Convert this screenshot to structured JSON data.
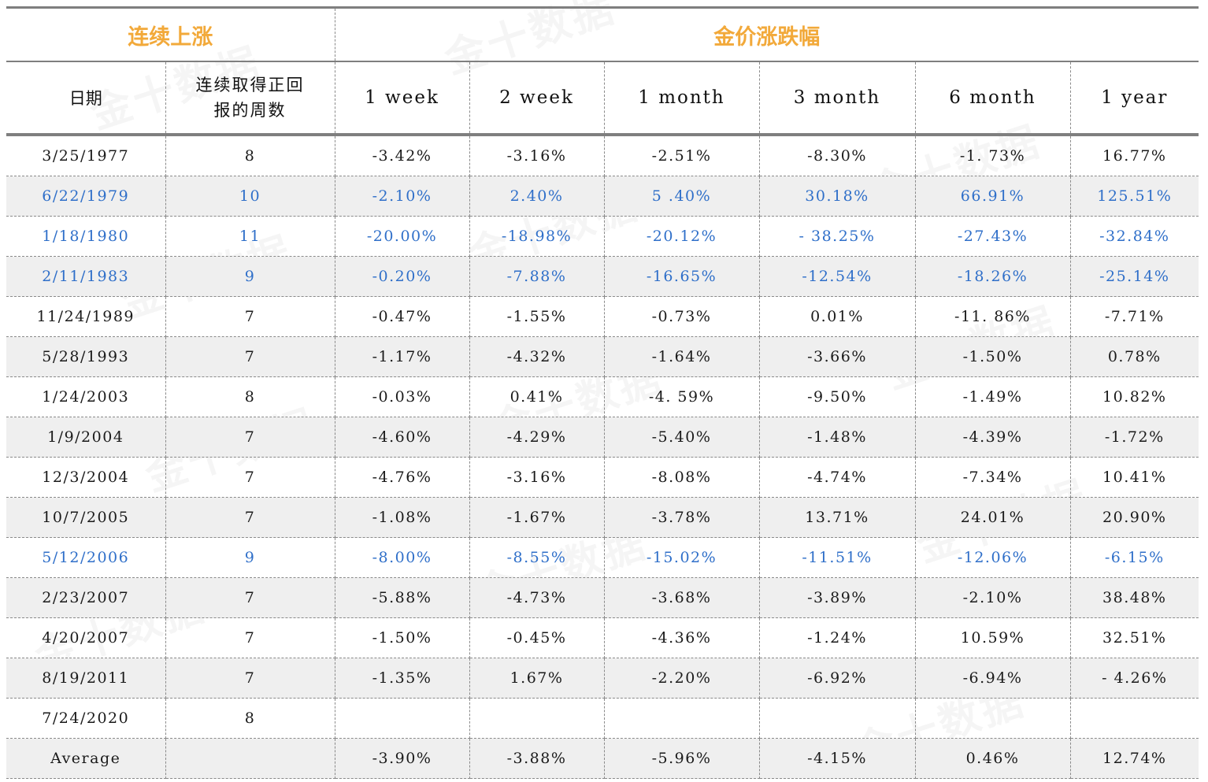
{
  "watermark": "金十数据",
  "group_headers": {
    "left": "连续上涨",
    "right": "金价涨跌幅"
  },
  "headers": {
    "date": "日期",
    "weeks_line1": "连续取得正回",
    "weeks_line2": "报的周数",
    "periods": [
      "1 week",
      "2 week",
      "1 month",
      "3 month",
      "6 month",
      "1 year"
    ]
  },
  "rows": [
    {
      "date": "3/25/1977",
      "weeks": "8",
      "values": [
        "-3.42%",
        "-3.16%",
        "-2.51%",
        "-8.30%",
        "-1. 73%",
        "16.77%"
      ],
      "highlight": false,
      "shaded": false
    },
    {
      "date": "6/22/1979",
      "weeks": "10",
      "values": [
        "-2.10%",
        "2.40%",
        "5 .40%",
        "30.18%",
        "66.91%",
        "125.51%"
      ],
      "highlight": true,
      "shaded": true
    },
    {
      "date": "1/18/1980",
      "weeks": "11",
      "values": [
        "-20.00%",
        "-18.98%",
        "-20.12%",
        "- 38.25%",
        "-27.43%",
        "-32.84%"
      ],
      "highlight": true,
      "shaded": false
    },
    {
      "date": "2/11/1983",
      "weeks": "9",
      "values": [
        "-0.20%",
        "-7.88%",
        "-16.65%",
        "-12.54%",
        "-18.26%",
        "-25.14%"
      ],
      "highlight": true,
      "shaded": true
    },
    {
      "date": "11/24/1989",
      "weeks": "7",
      "values": [
        "-0.47%",
        "-1.55%",
        "-0.73%",
        "0.01%",
        "-11. 86%",
        "-7.71%"
      ],
      "highlight": false,
      "shaded": false
    },
    {
      "date": "5/28/1993",
      "weeks": "7",
      "values": [
        "-1.17%",
        "-4.32%",
        "-1.64%",
        "-3.66%",
        "-1.50%",
        "0.78%"
      ],
      "highlight": false,
      "shaded": true
    },
    {
      "date": "1/24/2003",
      "weeks": "8",
      "values": [
        "-0.03%",
        "0.41%",
        "-4. 59%",
        "-9.50%",
        "-1.49%",
        "10.82%"
      ],
      "highlight": false,
      "shaded": false
    },
    {
      "date": "1/9/2004",
      "weeks": "7",
      "values": [
        "-4.60%",
        "-4.29%",
        "-5.40%",
        "-1.48%",
        "-4.39%",
        "-1.72%"
      ],
      "highlight": false,
      "shaded": true
    },
    {
      "date": "12/3/2004",
      "weeks": "7",
      "values": [
        "-4.76%",
        "-3.16%",
        "-8.08%",
        "-4.74%",
        "-7.34%",
        "10.41%"
      ],
      "highlight": false,
      "shaded": false
    },
    {
      "date": "10/7/2005",
      "weeks": "7",
      "values": [
        "-1.08%",
        "-1.67%",
        "-3.78%",
        "13.71%",
        "24.01%",
        "20.90%"
      ],
      "highlight": false,
      "shaded": true
    },
    {
      "date": "5/12/2006",
      "weeks": "9",
      "values": [
        "-8.00%",
        "-8.55%",
        "-15.02%",
        "-11.51%",
        "-12.06%",
        "-6.15%"
      ],
      "highlight": true,
      "shaded": false
    },
    {
      "date": "2/23/2007",
      "weeks": "7",
      "values": [
        "-5.88%",
        "-4.73%",
        "-3.68%",
        "-3.89%",
        "-2.10%",
        "38.48%"
      ],
      "highlight": false,
      "shaded": true
    },
    {
      "date": "4/20/2007",
      "weeks": "7",
      "values": [
        "-1.50%",
        "-0.45%",
        "-4.36%",
        "-1.24%",
        "10.59%",
        "32.51%"
      ],
      "highlight": false,
      "shaded": false
    },
    {
      "date": "8/19/2011",
      "weeks": "7",
      "values": [
        "-1.35%",
        "1.67%",
        "-2.20%",
        "-6.92%",
        "-6.94%",
        "- 4.26%"
      ],
      "highlight": false,
      "shaded": true
    },
    {
      "date": "7/24/2020",
      "weeks": "8",
      "values": [
        "",
        "",
        "",
        "",
        "",
        ""
      ],
      "highlight": false,
      "shaded": false
    },
    {
      "date": "Average",
      "weeks": "",
      "values": [
        "-3.90%",
        "-3.88%",
        "-5.96%",
        "-4.15%",
        "0.46%",
        "12.74%"
      ],
      "highlight": false,
      "shaded": true
    }
  ],
  "colors": {
    "group_header": "#f2a93a",
    "highlight": "#2f6fc9",
    "shade": "#efefef",
    "grid": "#8a8a8a"
  }
}
